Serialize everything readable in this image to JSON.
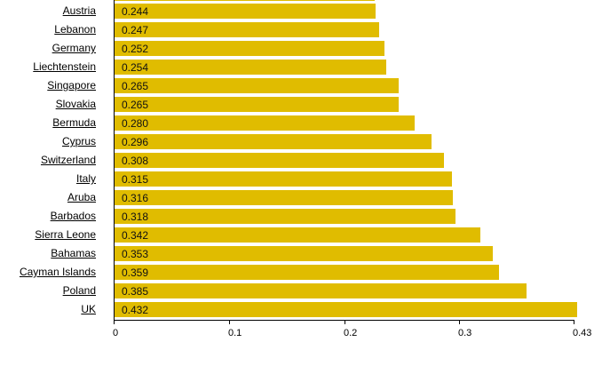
{
  "chart_data": {
    "type": "bar",
    "orientation": "horizontal",
    "title": "",
    "xlabel": "",
    "ylabel": "",
    "categories": [
      "Austria",
      "Lebanon",
      "Germany",
      "Liechtenstein",
      "Singapore",
      "Slovakia",
      "Bermuda",
      "Cyprus",
      "Switzerland",
      "Italy",
      "Aruba",
      "Barbados",
      "Sierra Leone",
      "Bahamas",
      "Cayman Islands",
      "Poland",
      "UK"
    ],
    "values": [
      0.244,
      0.247,
      0.252,
      0.254,
      0.265,
      0.265,
      0.28,
      0.296,
      0.308,
      0.315,
      0.316,
      0.318,
      0.342,
      0.353,
      0.359,
      0.385,
      0.432
    ],
    "value_labels": [
      "0.244",
      "0.247",
      "0.252",
      "0.254",
      "0.265",
      "0.265",
      "0.280",
      "0.296",
      "0.308",
      "0.315",
      "0.316",
      "0.318",
      "0.342",
      "0.353",
      "0.359",
      "0.385",
      "0.432"
    ],
    "x_ticks": [
      "0",
      "0.1",
      "0.2",
      "0.3",
      "0.43"
    ],
    "xlim": [
      0,
      0.43
    ],
    "grid": false,
    "legend": "none",
    "bar_color": "#E0BC00",
    "note": "Chart is scrolled; a partially visible bar is cut off above Austria"
  }
}
